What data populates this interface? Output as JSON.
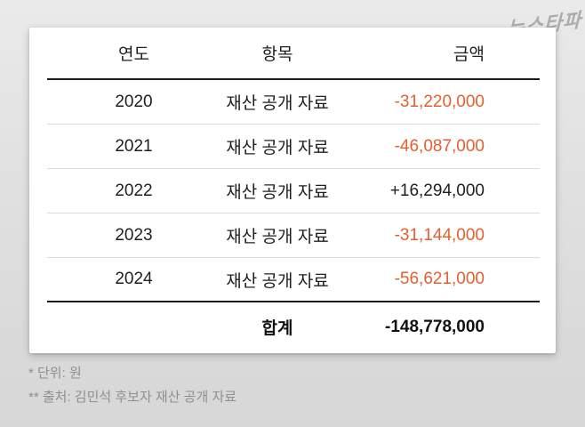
{
  "logo": {
    "text": "뉴스타파"
  },
  "colors": {
    "negative": "#e5602e",
    "positive": "#1f1f1f",
    "total": "#111111"
  },
  "table": {
    "headers": {
      "year": "연도",
      "item": "항목",
      "amount": "금액"
    },
    "rows": [
      {
        "year": "2020",
        "item": "재산 공개 자료",
        "amount": "-31,220,000",
        "negative": true
      },
      {
        "year": "2021",
        "item": "재산 공개 자료",
        "amount": "-46,087,000",
        "negative": true
      },
      {
        "year": "2022",
        "item": "재산 공개 자료",
        "amount": "+16,294,000",
        "negative": false
      },
      {
        "year": "2023",
        "item": "재산 공개 자료",
        "amount": "-31,144,000",
        "negative": true
      },
      {
        "year": "2024",
        "item": "재산 공개 자료",
        "amount": "-56,621,000",
        "negative": true
      }
    ],
    "total": {
      "label": "합계",
      "amount": "-148,778,000"
    }
  },
  "footnotes": {
    "unit": "* 단위: 원",
    "source": "** 출처: 김민석 후보자 재산 공개 자료"
  },
  "chart_data": {
    "type": "table",
    "title": "",
    "columns": [
      "연도",
      "항목",
      "금액"
    ],
    "categories": [
      "2020",
      "2021",
      "2022",
      "2023",
      "2024"
    ],
    "series": [
      {
        "name": "재산 공개 자료 금액(원)",
        "values": [
          -31220000,
          -46087000,
          16294000,
          -31144000,
          -56621000
        ]
      }
    ],
    "total": -148778000,
    "unit": "원",
    "source": "김민석 후보자 재산 공개 자료",
    "negative_color": "#e5602e"
  }
}
